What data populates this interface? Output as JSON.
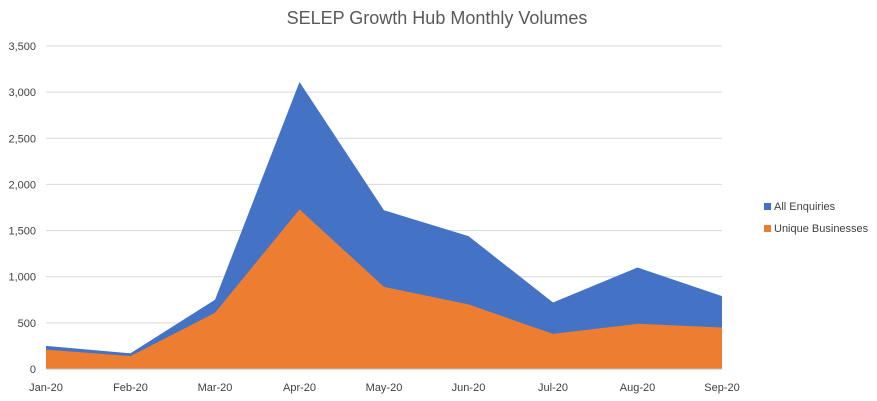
{
  "chart_data": {
    "type": "area",
    "title": "SELEP Growth Hub Monthly Volumes",
    "xlabel": "",
    "ylabel": "",
    "categories": [
      "Jan-20",
      "Feb-20",
      "Mar-20",
      "Apr-20",
      "May-20",
      "Jun-20",
      "Jul-20",
      "Aug-20",
      "Sep-20"
    ],
    "series": [
      {
        "name": "All Enquiries",
        "values": [
          250,
          170,
          750,
          3110,
          1720,
          1440,
          720,
          1100,
          790
        ]
      },
      {
        "name": "Unique Businesses",
        "values": [
          210,
          140,
          610,
          1730,
          890,
          700,
          380,
          490,
          450
        ]
      }
    ],
    "ylim": [
      0,
      3500
    ],
    "yticks": [
      0,
      500,
      1000,
      1500,
      2000,
      2500,
      3000,
      3500
    ],
    "ytick_labels": [
      "0",
      "500",
      "1,000",
      "1,500",
      "2,000",
      "2,500",
      "3,000",
      "3,500"
    ],
    "grid": true,
    "legend_position": "right",
    "colors": {
      "All Enquiries": "#4472c4",
      "Unique Businesses": "#ed7d31"
    }
  }
}
